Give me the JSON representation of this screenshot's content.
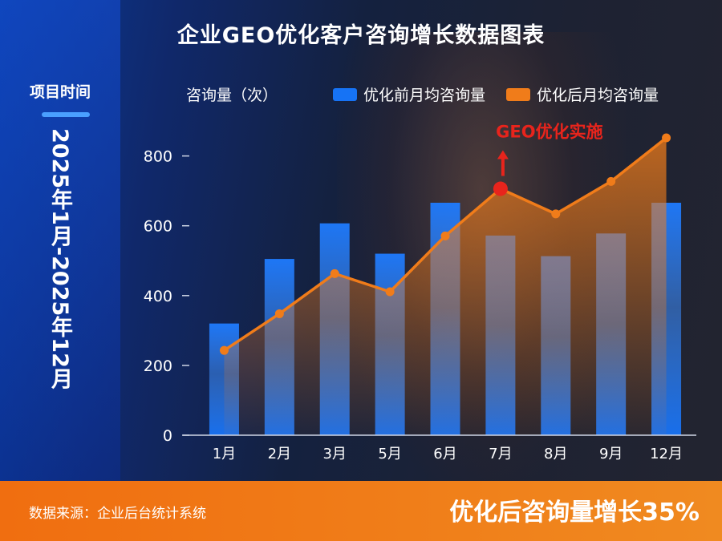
{
  "title": "企业GEO优化客户咨询增长数据图表",
  "project": {
    "label": "项目时间",
    "period": "2025年1月-2025年12月"
  },
  "colors": {
    "before": "#1673f5",
    "after": "#f07c1a",
    "annotation": "#e8241c",
    "footer": "#f07a18"
  },
  "chart_data": {
    "type": "bar+line",
    "ylabel": "咨询量（次）",
    "ylim": [
      0,
      850
    ],
    "yticks": [
      0,
      200,
      400,
      600,
      800
    ],
    "categories": [
      "1月",
      "2月",
      "3月",
      "5月",
      "6月",
      "7月",
      "8月",
      "9月",
      "12月"
    ],
    "series": [
      {
        "name": "优化前月均咨询量",
        "type": "bar",
        "values": [
          320,
          505,
          607,
          520,
          666,
          572,
          513,
          578,
          666
        ]
      },
      {
        "name": "优化后月均咨询量",
        "type": "line",
        "values": [
          243,
          348,
          463,
          411,
          571,
          706,
          634,
          727,
          852
        ]
      }
    ],
    "annotation": {
      "text": "GEO优化实施",
      "category": "7月"
    },
    "grid": false
  },
  "footer": {
    "source": "数据来源：企业后台统计系统",
    "highlight": "优化后咨询量增长35%"
  }
}
